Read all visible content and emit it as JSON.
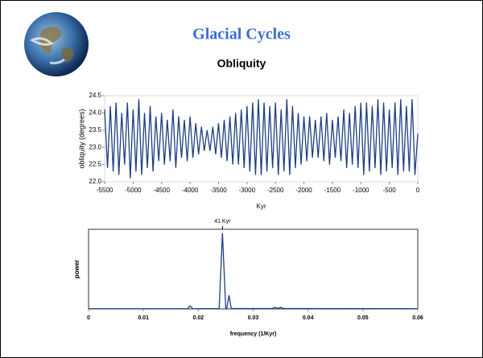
{
  "title": "Glacial Cycles",
  "subtitle": "Obliquity",
  "chart_data": [
    {
      "type": "line",
      "x_label": "Kyr",
      "y_label": "obliquity (degrees)",
      "color": "#1f3f7f",
      "x": [
        -5500,
        -5450,
        -5400,
        -5350,
        -5300,
        -5250,
        -5200,
        -5150,
        -5100,
        -5050,
        -5000,
        -4950,
        -4900,
        -4850,
        -4800,
        -4750,
        -4700,
        -4650,
        -4600,
        -4550,
        -4500,
        -4450,
        -4400,
        -4350,
        -4300,
        -4250,
        -4200,
        -4150,
        -4100,
        -4050,
        -4000,
        -3950,
        -3900,
        -3850,
        -3800,
        -3750,
        -3700,
        -3650,
        -3600,
        -3550,
        -3500,
        -3450,
        -3400,
        -3350,
        -3300,
        -3250,
        -3200,
        -3150,
        -3100,
        -3050,
        -3000,
        -2950,
        -2900,
        -2850,
        -2800,
        -2750,
        -2700,
        -2650,
        -2600,
        -2550,
        -2500,
        -2450,
        -2400,
        -2350,
        -2300,
        -2250,
        -2200,
        -2150,
        -2100,
        -2050,
        -2000,
        -1950,
        -1900,
        -1850,
        -1800,
        -1750,
        -1700,
        -1650,
        -1600,
        -1550,
        -1500,
        -1450,
        -1400,
        -1350,
        -1300,
        -1250,
        -1200,
        -1150,
        -1100,
        -1050,
        -1000,
        -950,
        -900,
        -850,
        -800,
        -750,
        -700,
        -650,
        -600,
        -550,
        -500,
        -450,
        -400,
        -350,
        -300,
        -250,
        -200,
        -150,
        -100,
        -50,
        0
      ],
      "values": [
        24.1,
        22.4,
        24.2,
        22.3,
        24.3,
        22.2,
        24.0,
        22.5,
        24.3,
        22.1,
        24.1,
        22.3,
        24.4,
        22.2,
        24.0,
        22.4,
        24.2,
        22.3,
        23.9,
        22.6,
        24.0,
        22.5,
        23.8,
        22.6,
        24.1,
        22.4,
        23.9,
        22.7,
        23.8,
        22.6,
        23.9,
        22.7,
        23.7,
        22.8,
        23.6,
        22.9,
        23.5,
        22.9,
        23.6,
        22.8,
        23.7,
        22.7,
        23.8,
        22.6,
        23.9,
        22.5,
        24.0,
        22.5,
        24.1,
        22.4,
        24.2,
        22.3,
        24.3,
        22.2,
        24.4,
        22.2,
        24.3,
        22.3,
        24.2,
        22.4,
        24.3,
        22.2,
        24.1,
        22.3,
        24.4,
        22.2,
        24.2,
        22.4,
        24.0,
        22.5,
        23.9,
        22.6,
        23.9,
        22.7,
        23.8,
        22.7,
        23.9,
        22.6,
        24.0,
        22.5,
        23.8,
        22.7,
        23.9,
        22.6,
        24.1,
        22.4,
        24.0,
        22.5,
        24.2,
        22.4,
        24.3,
        22.2,
        24.3,
        22.3,
        24.2,
        22.4,
        24.4,
        22.2,
        24.3,
        22.3,
        24.1,
        22.4,
        24.3,
        22.2,
        24.4,
        22.3,
        24.2,
        22.3,
        24.4,
        22.2,
        23.4
      ],
      "xlim": [
        -5500,
        0
      ],
      "xticks": [
        -5500,
        -5000,
        -4500,
        -4000,
        -3500,
        -3000,
        -2500,
        -2000,
        -1500,
        -1000,
        -500,
        0
      ],
      "ylim": [
        22,
        24.5
      ],
      "yticks": [
        {
          "value": 22,
          "label": "22.0"
        },
        22.5,
        {
          "value": 23,
          "label": "23.0"
        },
        23.5,
        {
          "value": 24,
          "label": "24.0"
        },
        24.5
      ]
    },
    {
      "type": "line",
      "x_label": "frequency (1/Kyr)",
      "y_label": "power",
      "annotation": "41 Kyr",
      "color": "#1f3f7f",
      "x": [
        0,
        0.018,
        0.0185,
        0.019,
        0.0238,
        0.0244,
        0.025,
        0.0252,
        0.0256,
        0.026,
        0.0335,
        0.034,
        0.0345,
        0.035,
        0.0355,
        0.06
      ],
      "values": [
        0.3,
        0.3,
        4,
        0.3,
        0.5,
        100,
        1,
        1,
        18,
        0.5,
        0.5,
        2,
        0.5,
        2,
        0.5,
        0.3
      ],
      "xlim": [
        0,
        0.06
      ],
      "xticks": [
        0,
        0.01,
        0.02,
        0.03,
        0.04,
        0.05,
        0.06
      ],
      "ylim": [
        0,
        105
      ]
    }
  ]
}
